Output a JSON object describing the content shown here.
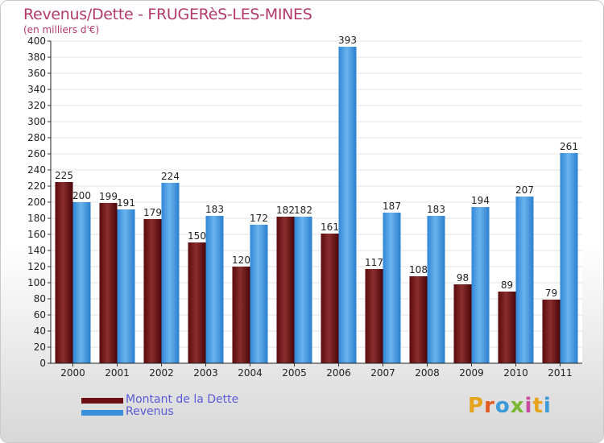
{
  "title": "Revenus/Dette - FRUGERèS-LES-MINES",
  "subtitle": "(en milliers d'€)",
  "logo_text": "Proxiti",
  "colors": {
    "dette": "#6b0f14",
    "revenus": "#3b8fdb",
    "title": "#b23a6a",
    "legend_text": "#5b5bd6"
  },
  "chart_data": {
    "type": "bar",
    "title": "Revenus/Dette - FRUGERèS-LES-MINES",
    "ylabel": "(en milliers d'€)",
    "xlabel": "",
    "ylim": [
      0,
      400
    ],
    "yticks": [
      0,
      20,
      40,
      60,
      80,
      100,
      120,
      140,
      160,
      180,
      200,
      220,
      240,
      260,
      280,
      300,
      320,
      340,
      360,
      380,
      400
    ],
    "grid": true,
    "legend_position": "bottom-left",
    "categories": [
      "2000",
      "2001",
      "2002",
      "2003",
      "2004",
      "2005",
      "2006",
      "2007",
      "2008",
      "2009",
      "2010",
      "2011"
    ],
    "series": [
      {
        "name": "Montant de la Dette",
        "values": [
          225,
          199,
          179,
          150,
          120,
          182,
          161,
          117,
          108,
          98,
          89,
          79
        ]
      },
      {
        "name": "Revenus",
        "values": [
          200,
          191,
          224,
          183,
          172,
          182,
          393,
          187,
          183,
          194,
          207,
          261
        ]
      }
    ]
  }
}
